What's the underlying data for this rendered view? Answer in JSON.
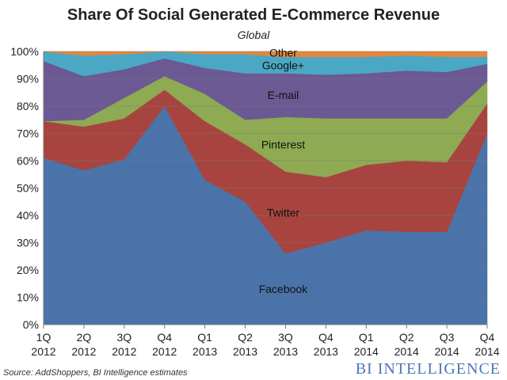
{
  "title": "Share Of Social Generated E-Commerce Revenue",
  "subtitle": "Global",
  "source": "Source: AddShoppers, BI Intelligence estimates",
  "brand": "BI INTELLIGENCE",
  "chart_data": {
    "type": "area",
    "stacked": true,
    "categories": [
      [
        "1Q",
        "2012"
      ],
      [
        "2Q",
        "2012"
      ],
      [
        "3Q",
        "2012"
      ],
      [
        "Q4",
        "2012"
      ],
      [
        "Q1",
        "2013"
      ],
      [
        "Q2",
        "2013"
      ],
      [
        "3Q",
        "2013"
      ],
      [
        "Q4",
        "2013"
      ],
      [
        "Q1",
        "2014"
      ],
      [
        "Q2",
        "2014"
      ],
      [
        "Q3",
        "2014"
      ],
      [
        "Q4",
        "2014"
      ]
    ],
    "ylim": [
      0,
      100
    ],
    "yticks": [
      "0%",
      "10%",
      "20%",
      "30%",
      "40%",
      "50%",
      "60%",
      "70%",
      "80%",
      "90%",
      "100%"
    ],
    "grid": true,
    "series": [
      {
        "name": "Facebook",
        "color": "#4a73aa",
        "values": [
          61,
          56.5,
          60.5,
          80,
          53,
          45,
          26,
          30,
          34.5,
          34,
          34,
          70
        ]
      },
      {
        "name": "Twitter",
        "color": "#a8443f",
        "values": [
          13.5,
          16,
          15,
          6,
          21.5,
          21,
          30,
          24,
          24,
          26,
          25.5,
          11
        ]
      },
      {
        "name": "Pinterest",
        "color": "#8eaa52",
        "values": [
          0,
          2.5,
          7.5,
          5,
          10,
          9,
          20,
          21.5,
          17,
          15.5,
          16,
          8
        ]
      },
      {
        "name": "E-mail",
        "color": "#6b5994",
        "values": [
          22,
          16,
          10.5,
          6.5,
          9.5,
          17,
          16,
          16,
          16.5,
          17.5,
          17,
          6.5
        ]
      },
      {
        "name": "Google+",
        "color": "#4ba8c5",
        "values": [
          3.5,
          7.5,
          5.5,
          2.5,
          5,
          7,
          6,
          6.5,
          6,
          5.5,
          5.5,
          2.5
        ]
      },
      {
        "name": "Other",
        "color": "#e3873a",
        "values": [
          0,
          1.5,
          1,
          0,
          1,
          1,
          2,
          2,
          2,
          1.5,
          2,
          2
        ]
      }
    ]
  }
}
